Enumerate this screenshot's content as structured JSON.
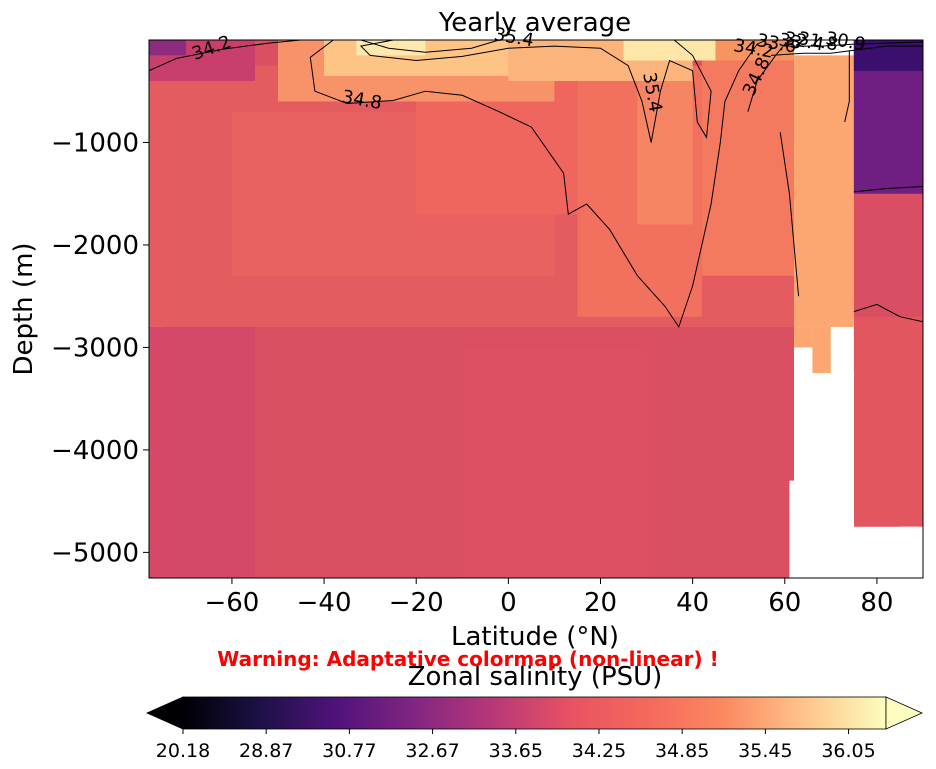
{
  "chart_data": {
    "type": "heatmap",
    "title": "Yearly average",
    "xlabel": "Latitude (°N)",
    "ylabel": "Depth (m)",
    "xlim": [
      -78,
      90
    ],
    "ylim": [
      -5250,
      0
    ],
    "xticks": [
      -60,
      -40,
      -20,
      0,
      20,
      40,
      60,
      80
    ],
    "xtick_labels": [
      "−60",
      "−40",
      "−20",
      "0",
      "20",
      "40",
      "60",
      "80"
    ],
    "yticks": [
      -1000,
      -2000,
      -3000,
      -4000,
      -5000
    ],
    "ytick_labels": [
      "−1000",
      "−2000",
      "−3000",
      "−4000",
      "−5000"
    ],
    "colorbar": {
      "label": "Zonal salinity (PSU)",
      "tick_labels": [
        "20.18",
        "28.87",
        "30.77",
        "32.67",
        "33.65",
        "34.25",
        "34.85",
        "35.45",
        "36.05"
      ],
      "extend": "both",
      "colormap": "magma"
    },
    "warning": "Warning: Adaptative colormap (non-linear) !",
    "contour_labels": [
      {
        "text": "34.2",
        "lat": -64,
        "depth": -130
      },
      {
        "text": "35.4",
        "lat": 1,
        "depth": -30
      },
      {
        "text": "35.4",
        "lat": 30,
        "depth": -520
      },
      {
        "text": "34.8",
        "lat": -32,
        "depth": -640
      },
      {
        "text": "34.8",
        "lat": 55,
        "depth": -380
      },
      {
        "text": "34.2",
        "lat": 53,
        "depth": -140
      },
      {
        "text": "33.6",
        "lat": 58,
        "depth": -90
      },
      {
        "text": "33",
        "lat": 61,
        "depth": -70
      },
      {
        "text": "32.4",
        "lat": 64,
        "depth": -70
      },
      {
        "text": "31.8",
        "lat": 67,
        "depth": -70
      },
      {
        "text": "30.9",
        "lat": 73,
        "depth": -70
      }
    ],
    "field_description_values": {
      "deep_south_pacific_band": 34.55,
      "intermediate_atlantic": 34.9,
      "subtropical_surface_max": 36.4,
      "north_atlantic_subpolar": 35.3,
      "arctic_surface": 30.9
    }
  }
}
